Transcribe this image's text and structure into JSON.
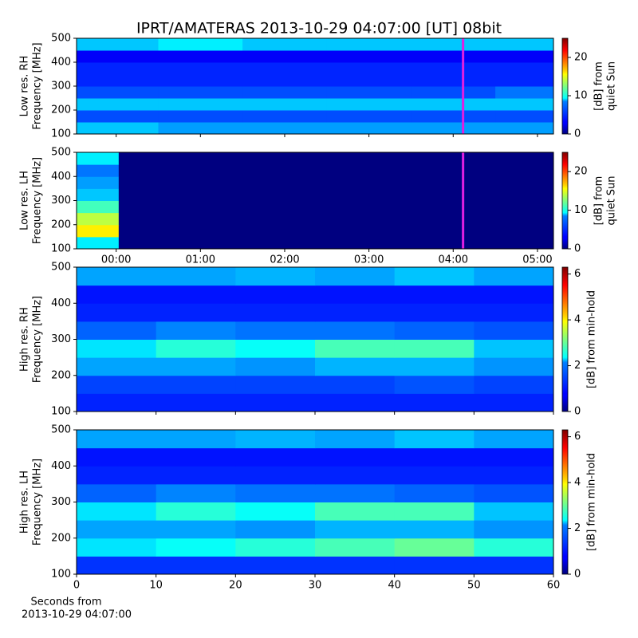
{
  "chart_data": [
    {
      "type": "heatmap",
      "title": "IPRT/AMATERAS 2013-10-29 04:07:00 [UT]   08bit",
      "ylabel": [
        "Low res. RH",
        "Frequency [MHz]"
      ],
      "xlim": [
        -0.47,
        5.19
      ],
      "ylim": [
        100,
        500
      ],
      "yticks": [
        100,
        200,
        300,
        400,
        500
      ],
      "xticks": [
        0,
        1,
        2,
        3,
        4,
        5
      ],
      "xticklabels": false,
      "x_edges": [
        -0.47,
        0.5,
        1.5,
        2.5,
        3.5,
        4.5,
        5.19
      ],
      "y_edges": [
        100,
        150,
        200,
        250,
        300,
        350,
        400,
        450,
        500
      ],
      "z": [
        [
          8,
          7,
          7,
          7,
          7,
          7
        ],
        [
          5,
          5,
          5,
          5,
          5,
          5
        ],
        [
          8,
          8,
          8,
          8,
          8,
          8
        ],
        [
          5,
          5,
          5,
          5,
          5,
          6
        ],
        [
          4,
          4,
          4,
          4,
          4,
          4
        ],
        [
          4,
          4,
          4,
          4,
          4,
          4
        ],
        [
          3,
          3,
          3,
          3,
          3,
          3
        ],
        [
          8,
          9,
          8,
          8,
          8,
          8
        ]
      ],
      "marker_x": 4.117,
      "marker_color": "#e020e0",
      "colorbar": {
        "label": [
          "[dB] from",
          "quiet Sun"
        ],
        "lim": [
          0,
          25
        ],
        "ticks": [
          0,
          10,
          20
        ]
      }
    },
    {
      "type": "heatmap",
      "ylabel": [
        "Low res. LH",
        "Frequency [MHz]"
      ],
      "xlim": [
        -0.47,
        5.19
      ],
      "ylim": [
        100,
        500
      ],
      "yticks": [
        100,
        200,
        300,
        400,
        500
      ],
      "xticks": [
        {
          "value": 0,
          "label": "00:00"
        },
        {
          "value": 1,
          "label": "01:00"
        },
        {
          "value": 2,
          "label": "02:00"
        },
        {
          "value": 3,
          "label": "03:00"
        },
        {
          "value": 4,
          "label": "04:00"
        },
        {
          "value": 5,
          "label": "05:00"
        }
      ],
      "xticklabels": true,
      "x_edges": [
        -0.47,
        0.03,
        5.19
      ],
      "y_edges": [
        100,
        150,
        200,
        250,
        300,
        350,
        400,
        450,
        500
      ],
      "z": [
        [
          9,
          0
        ],
        [
          16,
          0
        ],
        [
          14,
          0
        ],
        [
          11,
          0
        ],
        [
          8,
          0
        ],
        [
          7,
          0
        ],
        [
          6,
          0
        ],
        [
          9,
          0
        ]
      ],
      "marker_x": 4.117,
      "marker_color": "#e020e0",
      "colorbar": {
        "label": [
          "[dB] from",
          "quiet Sun"
        ],
        "lim": [
          0,
          25
        ],
        "ticks": [
          0,
          10,
          20
        ]
      }
    },
    {
      "type": "heatmap",
      "ylabel": [
        "High res. RH",
        "Frequency [MHz]"
      ],
      "xlim": [
        0,
        60
      ],
      "ylim": [
        100,
        500
      ],
      "yticks": [
        100,
        200,
        300,
        400,
        500
      ],
      "xticks": [
        0,
        10,
        20,
        30,
        40,
        50,
        60
      ],
      "xticklabels": false,
      "x_edges": [
        0,
        10,
        20,
        30,
        40,
        50,
        60
      ],
      "y_edges": [
        100,
        150,
        200,
        250,
        300,
        350,
        400,
        450,
        500
      ],
      "z": [
        [
          1.0,
          1.0,
          1.0,
          1.0,
          1.0,
          1.0
        ],
        [
          1.2,
          1.2,
          1.2,
          1.2,
          1.3,
          1.2
        ],
        [
          1.8,
          1.8,
          1.7,
          1.9,
          1.9,
          1.7
        ],
        [
          2.2,
          2.6,
          2.4,
          2.8,
          2.8,
          2.0
        ],
        [
          1.4,
          1.6,
          1.5,
          1.5,
          1.4,
          1.3
        ],
        [
          1.0,
          1.0,
          1.0,
          1.0,
          1.0,
          1.0
        ],
        [
          0.9,
          0.9,
          0.9,
          0.9,
          0.9,
          0.9
        ],
        [
          1.8,
          1.8,
          1.9,
          1.8,
          2.0,
          1.8
        ]
      ],
      "colorbar": {
        "label": [
          "[dB] from min-hold"
        ],
        "lim": [
          0,
          6.3
        ],
        "ticks": [
          0,
          2,
          4,
          6
        ]
      }
    },
    {
      "type": "heatmap",
      "ylabel": [
        "High res. LH",
        "Frequency [MHz]"
      ],
      "xlabel": [
        "Seconds from",
        "2013-10-29 04:07:00"
      ],
      "xlim": [
        0,
        60
      ],
      "ylim": [
        100,
        500
      ],
      "yticks": [
        100,
        200,
        300,
        400,
        500
      ],
      "xticks": [
        0,
        10,
        20,
        30,
        40,
        50,
        60
      ],
      "xticklabels": true,
      "x_edges": [
        0,
        10,
        20,
        30,
        40,
        50,
        60
      ],
      "y_edges": [
        100,
        150,
        200,
        250,
        300,
        350,
        400,
        450,
        500
      ],
      "z": [
        [
          1.1,
          1.1,
          1.1,
          1.1,
          1.1,
          1.1
        ],
        [
          2.2,
          2.4,
          2.6,
          2.8,
          3.0,
          2.6
        ],
        [
          1.8,
          1.8,
          1.7,
          1.9,
          1.9,
          1.7
        ],
        [
          2.2,
          2.6,
          2.4,
          2.8,
          2.8,
          2.0
        ],
        [
          1.4,
          1.6,
          1.5,
          1.5,
          1.4,
          1.3
        ],
        [
          1.0,
          1.0,
          1.0,
          1.0,
          1.0,
          1.0
        ],
        [
          0.9,
          0.9,
          0.9,
          0.9,
          0.9,
          0.9
        ],
        [
          1.8,
          1.8,
          1.9,
          1.8,
          2.0,
          1.8
        ]
      ],
      "colorbar": {
        "label": [
          "[dB] from min-hold"
        ],
        "lim": [
          0,
          6.3
        ],
        "ticks": [
          0,
          2,
          4,
          6
        ]
      }
    }
  ]
}
